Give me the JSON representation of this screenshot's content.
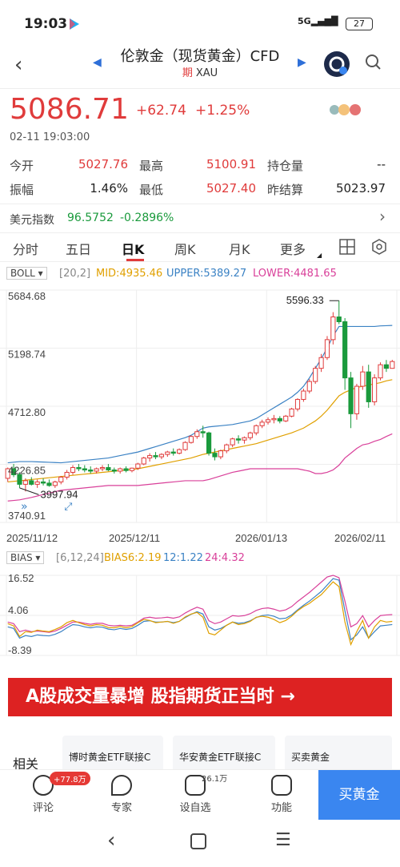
{
  "status": {
    "time": "19:03",
    "signal": "5G",
    "battery": "27"
  },
  "header": {
    "title": "伦敦金（现货黄金）CFD",
    "sub_tag": "期",
    "symbol": "XAU"
  },
  "quote": {
    "price": "5086.71",
    "change": "+62.74",
    "change_pct": "+1.25%",
    "timestamp": "02-11 19:03:00"
  },
  "stats": [
    {
      "label": "今开",
      "value": "5027.76",
      "color": "red"
    },
    {
      "label": "最高",
      "value": "5100.91",
      "color": "red"
    },
    {
      "label": "持仓量",
      "value": "--",
      "color": "black"
    },
    {
      "label": "振幅",
      "value": "1.46%",
      "color": "black"
    },
    {
      "label": "最低",
      "value": "5027.40",
      "color": "red"
    },
    {
      "label": "昨结算",
      "value": "5023.97",
      "color": "black"
    }
  ],
  "usd_index": {
    "label": "美元指数",
    "value": "96.5752",
    "change": "-0.2896%"
  },
  "tabs": [
    "分时",
    "五日",
    "日K",
    "周K",
    "月K",
    "更多"
  ],
  "active_tab": 2,
  "boll": {
    "name": "BOLL",
    "params": "[20,2]",
    "mid": "MID:4935.46",
    "upper": "UPPER:5389.27",
    "lower": "LOWER:4481.65"
  },
  "bias": {
    "name": "BIAS",
    "params": "[6,12,24]",
    "b6": "BIAS6:2.19",
    "b12": "12:1.22",
    "b24": "24:4.32"
  },
  "chart_data": {
    "type": "candlestick",
    "y_axis_labels": [
      "5684.68",
      "5198.74",
      "4712.80",
      "4226.85",
      "3740.91"
    ],
    "ylim": [
      3740.91,
      5684.68
    ],
    "x_axis_labels": [
      "2025/11/12",
      "2025/12/11",
      "2026/01/13",
      "2026/02/11"
    ],
    "annotations": {
      "high": "5596.33",
      "low": "3997.94"
    },
    "bias_axis_labels": [
      "16.52",
      "4.06",
      "-8.39"
    ],
    "bias_ylim": [
      -8.39,
      16.52
    ],
    "candles": [
      [
        4110,
        4200,
        4080,
        4190
      ],
      [
        4190,
        4230,
        4120,
        4140
      ],
      [
        4140,
        4160,
        4030,
        4060
      ],
      [
        4060,
        4110,
        4000,
        4090
      ],
      [
        4090,
        4120,
        4050,
        4060
      ],
      [
        4060,
        4100,
        4030,
        4080
      ],
      [
        4080,
        4110,
        4050,
        4070
      ],
      [
        4070,
        4100,
        4040,
        4050
      ],
      [
        4050,
        4090,
        4030,
        4080
      ],
      [
        4080,
        4130,
        4060,
        4120
      ],
      [
        4120,
        4180,
        4100,
        4160
      ],
      [
        4160,
        4220,
        4140,
        4200
      ],
      [
        4200,
        4230,
        4170,
        4190
      ],
      [
        4190,
        4220,
        4160,
        4180
      ],
      [
        4180,
        4210,
        4150,
        4170
      ],
      [
        4170,
        4200,
        4150,
        4190
      ],
      [
        4190,
        4220,
        4170,
        4200
      ],
      [
        4200,
        4230,
        4170,
        4180
      ],
      [
        4180,
        4200,
        4150,
        4170
      ],
      [
        4170,
        4200,
        4150,
        4190
      ],
      [
        4190,
        4210,
        4160,
        4175
      ],
      [
        4175,
        4200,
        4160,
        4195
      ],
      [
        4195,
        4240,
        4180,
        4230
      ],
      [
        4230,
        4290,
        4220,
        4280
      ],
      [
        4280,
        4320,
        4250,
        4300
      ],
      [
        4300,
        4330,
        4270,
        4290
      ],
      [
        4290,
        4320,
        4270,
        4310
      ],
      [
        4310,
        4340,
        4290,
        4330
      ],
      [
        4330,
        4360,
        4300,
        4320
      ],
      [
        4320,
        4360,
        4310,
        4350
      ],
      [
        4350,
        4420,
        4340,
        4410
      ],
      [
        4410,
        4470,
        4400,
        4460
      ],
      [
        4460,
        4520,
        4440,
        4500
      ],
      [
        4500,
        4550,
        4450,
        4490
      ],
      [
        4490,
        4500,
        4300,
        4320
      ],
      [
        4320,
        4360,
        4260,
        4290
      ],
      [
        4290,
        4350,
        4270,
        4340
      ],
      [
        4340,
        4400,
        4320,
        4390
      ],
      [
        4390,
        4450,
        4370,
        4440
      ],
      [
        4440,
        4470,
        4400,
        4430
      ],
      [
        4430,
        4460,
        4400,
        4450
      ],
      [
        4450,
        4500,
        4430,
        4490
      ],
      [
        4490,
        4560,
        4470,
        4550
      ],
      [
        4550,
        4600,
        4530,
        4580
      ],
      [
        4580,
        4620,
        4560,
        4600
      ],
      [
        4600,
        4640,
        4570,
        4610
      ],
      [
        4610,
        4630,
        4570,
        4590
      ],
      [
        4590,
        4640,
        4580,
        4630
      ],
      [
        4630,
        4700,
        4620,
        4690
      ],
      [
        4690,
        4780,
        4670,
        4770
      ],
      [
        4770,
        4860,
        4750,
        4840
      ],
      [
        4840,
        4940,
        4820,
        4920
      ],
      [
        4920,
        5050,
        4900,
        5030
      ],
      [
        5030,
        5150,
        5000,
        5120
      ],
      [
        5120,
        5300,
        5100,
        5270
      ],
      [
        5270,
        5500,
        5230,
        5460
      ],
      [
        5460,
        5596,
        5400,
        5420
      ],
      [
        5420,
        5450,
        4850,
        4950
      ],
      [
        4950,
        5000,
        4530,
        4650
      ],
      [
        4650,
        4900,
        4600,
        4880
      ],
      [
        4880,
        5050,
        4850,
        5000
      ],
      [
        5000,
        5060,
        4700,
        4750
      ],
      [
        4750,
        4980,
        4720,
        4950
      ],
      [
        4950,
        5080,
        4930,
        5060
      ],
      [
        5060,
        5100,
        5000,
        5030
      ],
      [
        5030,
        5101,
        5027,
        5087
      ]
    ],
    "boll_mid": [
      4080,
      4085,
      4090,
      4095,
      4100,
      4105,
      4110,
      4115,
      4120,
      4125,
      4130,
      4135,
      4140,
      4145,
      4150,
      4155,
      4160,
      4165,
      4170,
      4175,
      4180,
      4185,
      4190,
      4200,
      4210,
      4220,
      4230,
      4240,
      4250,
      4260,
      4270,
      4280,
      4295,
      4310,
      4320,
      4330,
      4340,
      4350,
      4360,
      4370,
      4380,
      4390,
      4400,
      4415,
      4430,
      4445,
      4460,
      4475,
      4490,
      4510,
      4530,
      4560,
      4590,
      4630,
      4680,
      4740,
      4800,
      4830,
      4850,
      4870,
      4880,
      4890,
      4900,
      4910,
      4925,
      4935
    ],
    "boll_upper": [
      4240,
      4245,
      4250,
      4250,
      4250,
      4248,
      4246,
      4244,
      4242,
      4240,
      4245,
      4250,
      4255,
      4260,
      4265,
      4270,
      4275,
      4280,
      4290,
      4300,
      4310,
      4320,
      4330,
      4345,
      4360,
      4375,
      4390,
      4405,
      4420,
      4435,
      4450,
      4470,
      4500,
      4530,
      4540,
      4545,
      4550,
      4555,
      4560,
      4570,
      4580,
      4590,
      4610,
      4640,
      4670,
      4700,
      4730,
      4760,
      4790,
      4830,
      4880,
      4950,
      5030,
      5110,
      5200,
      5300,
      5380,
      5380,
      5380,
      5380,
      5380,
      5380,
      5380,
      5385,
      5387,
      5389
    ],
    "boll_lower": [
      3920,
      3925,
      3930,
      3940,
      3950,
      3962,
      3974,
      3986,
      3998,
      4010,
      4015,
      4020,
      4025,
      4030,
      4035,
      4040,
      4045,
      4050,
      4050,
      4050,
      4050,
      4050,
      4050,
      4055,
      4060,
      4065,
      4070,
      4075,
      4080,
      4085,
      4090,
      4090,
      4090,
      4090,
      4100,
      4115,
      4130,
      4145,
      4160,
      4170,
      4180,
      4190,
      4190,
      4190,
      4190,
      4190,
      4190,
      4190,
      4190,
      4190,
      4180,
      4170,
      4150,
      4150,
      4160,
      4180,
      4220,
      4280,
      4320,
      4360,
      4390,
      4400,
      4420,
      4435,
      4460,
      4482
    ],
    "bias6": [
      1.5,
      0.8,
      -2.5,
      -1.0,
      -1.2,
      -0.5,
      -0.8,
      -1.0,
      -0.3,
      0.5,
      1.8,
      2.5,
      1.8,
      1.2,
      0.8,
      1.2,
      1.0,
      0.3,
      0.2,
      0.6,
      0.2,
      0.6,
      1.8,
      2.8,
      2.5,
      1.8,
      2.0,
      2.2,
      1.6,
      2.2,
      3.6,
      4.5,
      5.0,
      3.5,
      -1.5,
      -2.0,
      -0.5,
      1.0,
      2.0,
      1.2,
      1.5,
      2.2,
      3.5,
      3.8,
      3.5,
      2.8,
      1.8,
      2.5,
      3.8,
      5.5,
      6.8,
      7.8,
      9.2,
      10.5,
      12.5,
      14.5,
      13.0,
      2.0,
      -5.0,
      -1.0,
      2.5,
      -3.0,
      0.5,
      2.5,
      2.0,
      2.19
    ],
    "bias12": [
      0.5,
      0.0,
      -3.0,
      -2.2,
      -2.5,
      -2.0,
      -2.2,
      -2.3,
      -1.8,
      -1.0,
      0.2,
      1.2,
      1.0,
      0.5,
      0.2,
      0.5,
      0.4,
      -0.2,
      -0.4,
      0.0,
      -0.3,
      0.0,
      1.0,
      2.2,
      2.4,
      2.0,
      2.0,
      2.2,
      1.8,
      2.2,
      3.4,
      4.4,
      5.2,
      4.5,
      0.5,
      -0.5,
      0.0,
      1.0,
      2.0,
      1.6,
      1.8,
      2.4,
      3.4,
      4.0,
      4.2,
      3.8,
      3.0,
      3.2,
      4.2,
      5.8,
      7.2,
      8.5,
      10.0,
      11.5,
      13.5,
      15.5,
      15.0,
      5.5,
      -3.5,
      -2.0,
      0.5,
      -3.0,
      -1.0,
      0.8,
      1.0,
      1.22
    ],
    "bias24": [
      2.0,
      1.5,
      -1.0,
      -0.5,
      -1.0,
      -0.8,
      -1.0,
      -1.2,
      -0.8,
      0.0,
      1.0,
      2.0,
      2.0,
      1.6,
      1.3,
      1.6,
      1.6,
      1.0,
      0.8,
      1.0,
      0.8,
      1.0,
      2.0,
      3.2,
      3.5,
      3.2,
      3.3,
      3.5,
      3.2,
      3.6,
      4.8,
      5.8,
      6.6,
      6.0,
      2.4,
      1.5,
      2.0,
      3.0,
      4.0,
      3.8,
      4.0,
      4.6,
      5.6,
      6.2,
      6.4,
      6.0,
      5.4,
      5.8,
      6.8,
      8.4,
      9.8,
      11.2,
      12.8,
      14.4,
      16.0,
      16.52,
      15.8,
      8.5,
      0.5,
      1.5,
      4.0,
      0.5,
      2.5,
      4.0,
      4.2,
      4.32
    ]
  },
  "banner": {
    "text": "A股成交量暴增 股指期货正当时 →"
  },
  "related": {
    "label": "相关",
    "cards": [
      "博时黄金ETF联接C",
      "华安黄金ETF联接C",
      "买卖黄金"
    ]
  },
  "bottom_nav": [
    {
      "label": "评论",
      "badge": "+77.8万"
    },
    {
      "label": "专家",
      "badge": ""
    },
    {
      "label": "设自选",
      "badge": "26.1万"
    },
    {
      "label": "功能",
      "badge": ""
    }
  ],
  "buy_button": "买黄金",
  "colors": {
    "up": "#e03b3b",
    "down": "#1a9a3c",
    "mid": "#e0a000",
    "upper": "#3b82c4",
    "lower": "#d9409a"
  }
}
